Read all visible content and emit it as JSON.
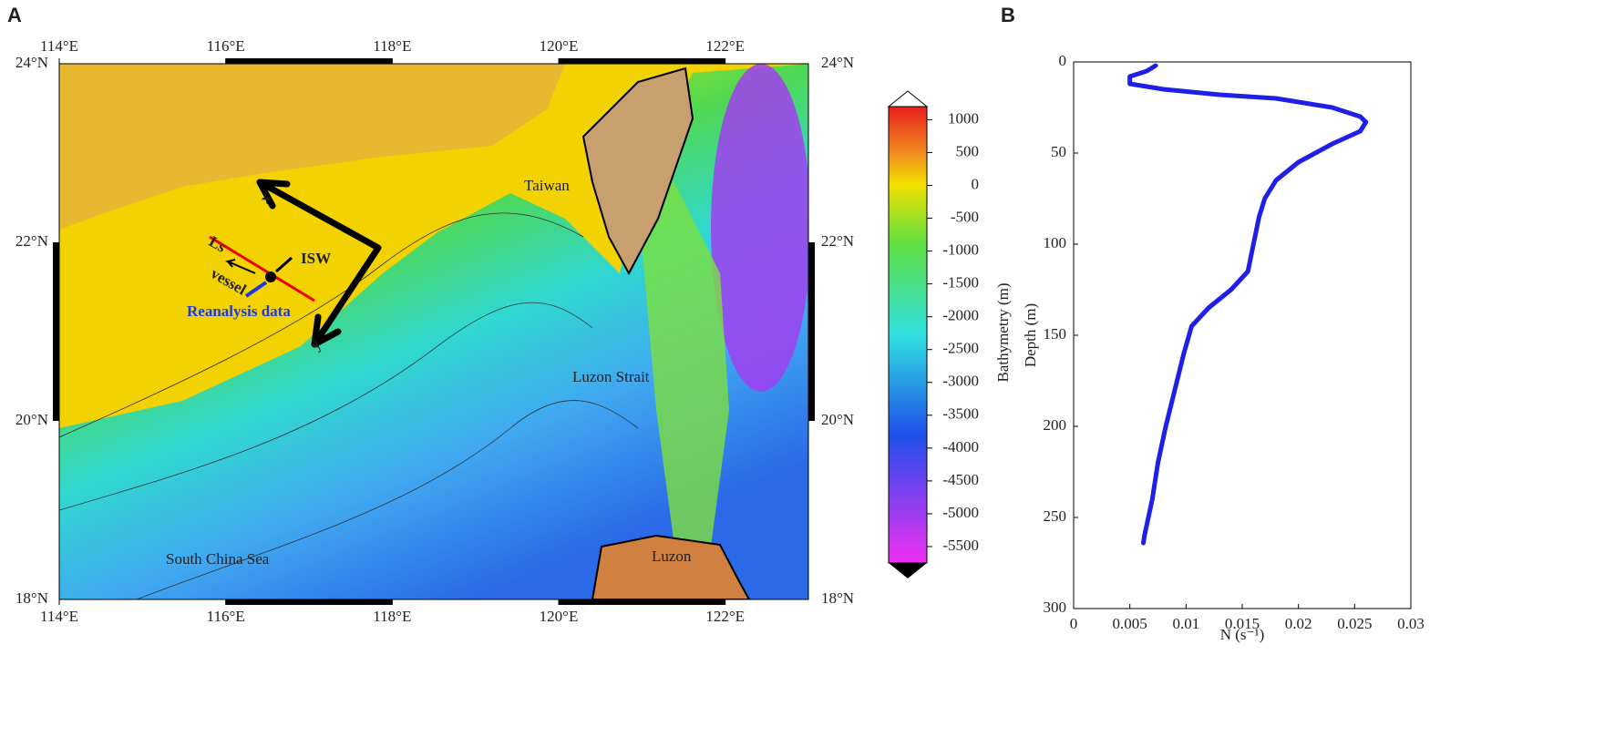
{
  "map": {
    "panel_label": "A",
    "xlim": [
      114,
      123
    ],
    "ylim": [
      18,
      24
    ],
    "xticks": [
      {
        "value": 114,
        "label": "114°E"
      },
      {
        "value": 116,
        "label": "116°E"
      },
      {
        "value": 118,
        "label": "118°E"
      },
      {
        "value": 120,
        "label": "120°E"
      },
      {
        "value": 122,
        "label": "122°E"
      }
    ],
    "yticks": [
      {
        "value": 18,
        "label": "18°N"
      },
      {
        "value": 20,
        "label": "20°N"
      },
      {
        "value": 22,
        "label": "22°N"
      },
      {
        "value": 24,
        "label": "24°N"
      }
    ],
    "places": {
      "taiwan": "Taiwan",
      "luzon_strait": "Luzon Strait",
      "scs": "South China Sea",
      "luzon": "Luzon"
    },
    "annotations": {
      "x_axis": "x",
      "y_axis": "y",
      "ls": "Ls",
      "vessel": "vessel",
      "isw": "ISW",
      "reanalysis": "Reanalysis data"
    },
    "colorbar": {
      "label": "Bathymetry (m)",
      "lim": [
        -5750,
        1200
      ],
      "ticks": [
        1000,
        500,
        0,
        -500,
        -1000,
        -1500,
        -2000,
        -2500,
        -3000,
        -3500,
        -4000,
        -4500,
        -5000,
        -5500
      ]
    }
  },
  "chart_data": {
    "type": "line",
    "panel_label": "B",
    "xlabel": "N (s⁻¹)",
    "ylabel": "Depth (m)",
    "color": "#1f1fe6",
    "x": [
      0.0073,
      0.0065,
      0.005,
      0.005,
      0.008,
      0.013,
      0.018,
      0.023,
      0.0255,
      0.026,
      0.0255,
      0.023,
      0.02,
      0.018,
      0.017,
      0.0165,
      0.016,
      0.0155,
      0.014,
      0.012,
      0.0105,
      0.0098,
      0.009,
      0.0082,
      0.0075,
      0.007,
      0.0063,
      0.0062
    ],
    "values": [
      2,
      5,
      8,
      12,
      15,
      18,
      20,
      25,
      30,
      33,
      38,
      45,
      55,
      65,
      75,
      85,
      100,
      115,
      125,
      135,
      145,
      160,
      180,
      200,
      220,
      240,
      260,
      264
    ],
    "xlim": [
      0,
      0.03
    ],
    "ylim": [
      0,
      300
    ],
    "xticks": [
      0,
      0.005,
      0.01,
      0.015,
      0.02,
      0.025,
      0.03
    ],
    "yticks": [
      0,
      50,
      100,
      150,
      200,
      250,
      300
    ],
    "y_inverted": true
  }
}
